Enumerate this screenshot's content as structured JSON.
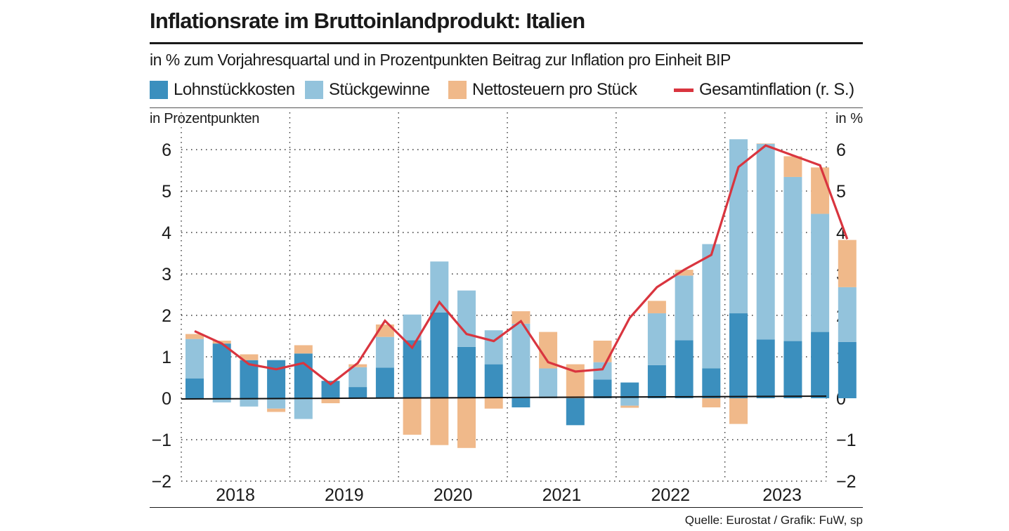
{
  "title": "Inflationsrate im Bruttoinlandprodukt: Italien",
  "subtitle": "in % zum Vorjahresquartal und in Prozentpunkten Beitrag zur Inflation pro Einheit BIP",
  "legend": [
    {
      "label": "Lohnstückkosten",
      "color": "#3b8fbe",
      "kind": "box"
    },
    {
      "label": "Stückgewinne",
      "color": "#93c3dc",
      "kind": "box"
    },
    {
      "label": "Nettosteuern pro Stück",
      "color": "#f0b98a",
      "kind": "box"
    },
    {
      "label": "Gesamtinflation (r. S.)",
      "color": "#d9353f",
      "kind": "line"
    }
  ],
  "source": "Quelle: Eurostat / Grafik: FuW, sp",
  "chart_data": {
    "type": "bar",
    "stacked": true,
    "title": "Inflationsrate im Bruttoinlandprodukt: Italien",
    "ylabel_left": "in Prozentpunkten",
    "ylabel_right": "in %",
    "ylim": [
      -2,
      6.5
    ],
    "yticks": [
      -2,
      -1,
      0,
      1,
      2,
      3,
      4,
      5,
      6
    ],
    "ytick_labels": [
      "−2",
      "−1",
      "0",
      "1",
      "2",
      "3",
      "4",
      "5",
      "6"
    ],
    "years": [
      "2018",
      "2019",
      "2020",
      "2021",
      "2022",
      "2023"
    ],
    "quarters_per_year": 4,
    "series": [
      {
        "name": "Lohnstückkosten",
        "color": "#3b8fbe",
        "values": [
          0.48,
          1.32,
          0.92,
          0.92,
          1.08,
          0.42,
          0.27,
          0.74,
          1.4,
          2.07,
          1.24,
          0.82,
          -0.22,
          0.0,
          -0.65,
          0.45,
          0.38,
          0.8,
          1.4,
          0.72,
          2.05,
          1.42,
          1.38,
          1.6,
          1.36
        ]
      },
      {
        "name": "Stückgewinne",
        "color": "#93c3dc",
        "values": [
          0.95,
          -0.1,
          -0.2,
          -0.25,
          -0.5,
          0.0,
          0.48,
          0.74,
          0.62,
          1.23,
          1.36,
          0.82,
          1.8,
          0.72,
          0.0,
          0.42,
          -0.18,
          1.25,
          1.56,
          3.0,
          4.2,
          4.72,
          3.96,
          2.85,
          1.32
        ]
      },
      {
        "name": "Nettosteuern pro Stück",
        "color": "#f0b98a",
        "values": [
          0.12,
          0.07,
          0.14,
          -0.08,
          0.2,
          -0.12,
          0.07,
          0.3,
          -0.88,
          -1.13,
          -1.2,
          -0.25,
          0.3,
          0.88,
          0.82,
          0.52,
          -0.05,
          0.3,
          0.14,
          -0.22,
          -0.62,
          0.01,
          0.5,
          1.12,
          1.14
        ]
      },
      {
        "name": "Gesamtinflation (r. S.)",
        "color": "#d9353f",
        "type": "line",
        "values": [
          1.62,
          1.32,
          0.82,
          0.7,
          0.85,
          0.34,
          0.85,
          1.87,
          1.22,
          2.32,
          1.55,
          1.38,
          1.86,
          0.87,
          null,
          0.7,
          1.94,
          2.68,
          3.1,
          3.46,
          5.58,
          6.1,
          5.86,
          5.62,
          3.84
        ]
      }
    ]
  }
}
